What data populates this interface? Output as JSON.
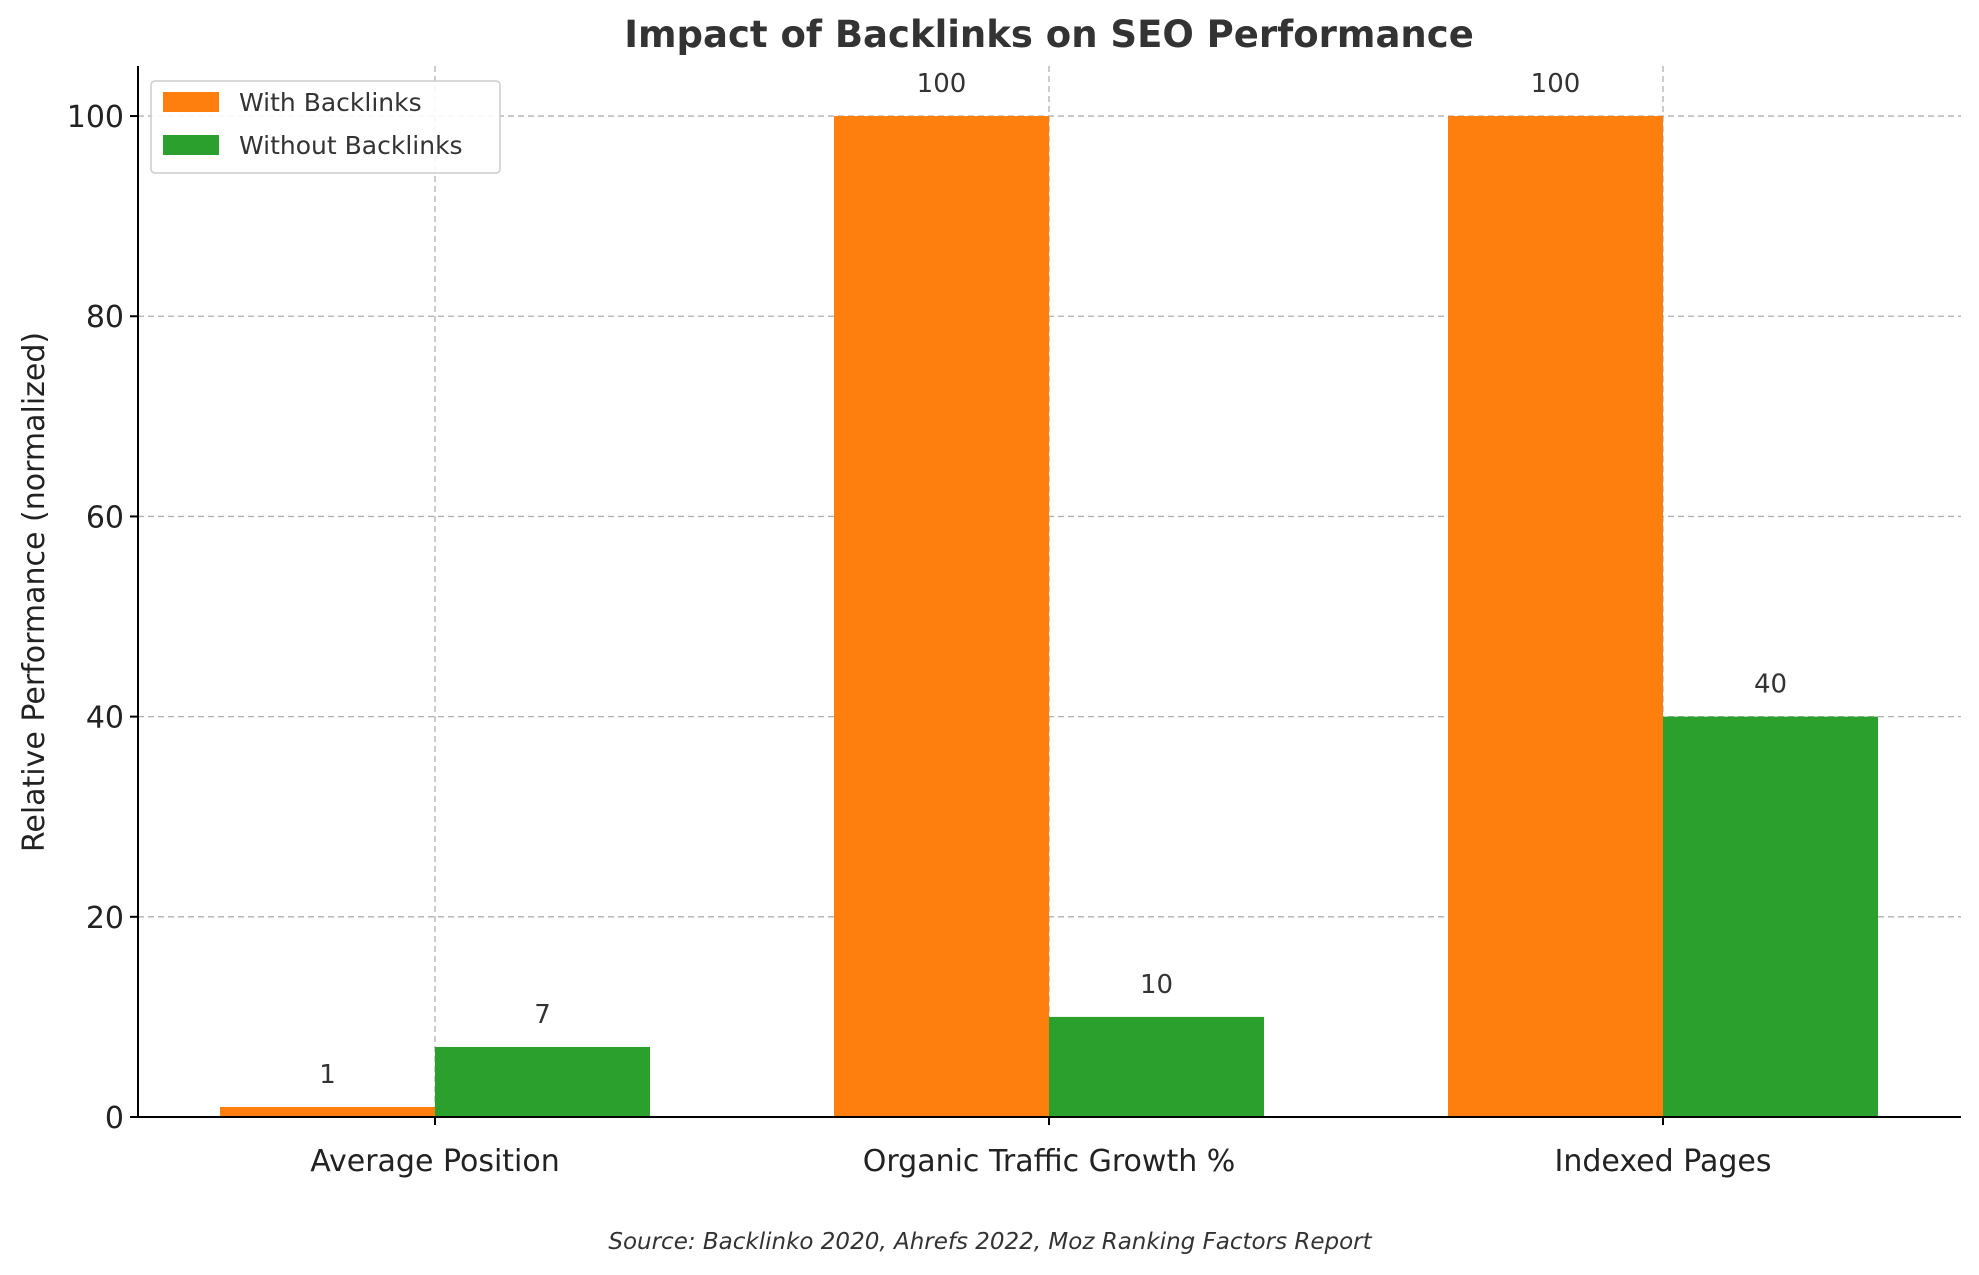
{
  "chart_data": {
    "type": "bar",
    "title": "Impact of Backlinks on SEO Performance",
    "xlabel": "",
    "ylabel": "Relative Performance (normalized)",
    "categories": [
      "Average Position",
      "Organic Traffic Growth %",
      "Indexed Pages"
    ],
    "series": [
      {
        "name": "With Backlinks",
        "values": [
          1,
          100,
          100
        ],
        "color": "#ff7f0e"
      },
      {
        "name": "Without Backlinks",
        "values": [
          7,
          10,
          40
        ],
        "color": "#2ca02c"
      }
    ],
    "ylim": [
      0,
      105
    ],
    "yticks": [
      0,
      20,
      40,
      60,
      80,
      100
    ],
    "grid": true,
    "legend_position": "top-left",
    "data_labels": true,
    "source": "Source: Backlinko 2020, Ahrefs 2022, Moz Ranking Factors Report"
  }
}
